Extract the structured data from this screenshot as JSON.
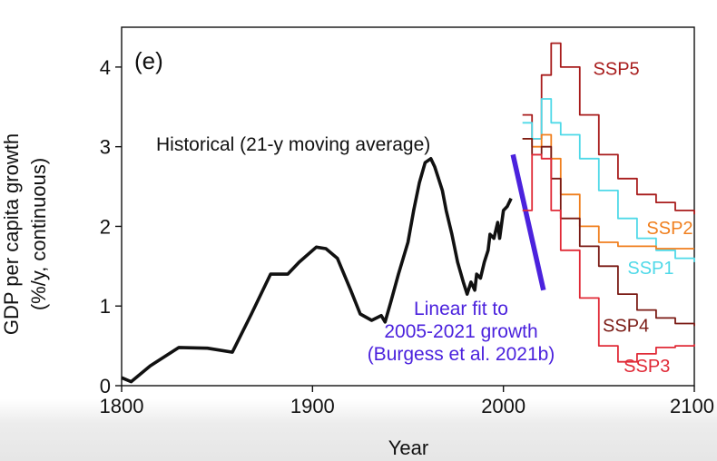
{
  "chart_data": {
    "type": "line",
    "panel_label": "(e)",
    "xlabel": "Year",
    "ylabel_line1": "GDP per capita growth",
    "ylabel_line2": "(%/y, continuous)",
    "xlim": [
      1800,
      2100
    ],
    "ylim": [
      0,
      4.5
    ],
    "x_ticks": [
      1800,
      1900,
      2000,
      2100
    ],
    "y_ticks": [
      0,
      1,
      2,
      3,
      4
    ],
    "grid": false,
    "annotations": {
      "historical": "Historical (21-y moving average)",
      "fit_line1": "Linear fit to",
      "fit_line2": "2005-2021 growth",
      "fit_line3": "(Burgess et al. 2021b)"
    },
    "colors": {
      "historical": "#111111",
      "fit": "#4b22dd",
      "fit_text": "#4b22dd",
      "SSP1": "#4fd9e8",
      "SSP2": "#f07f1e",
      "SSP3": "#e02a37",
      "SSP4": "#7a1a14",
      "SSP5": "#a81c1c"
    },
    "series": [
      {
        "name": "Historical",
        "style": "line",
        "x": [
          1800,
          1805,
          1815,
          1830,
          1845,
          1858,
          1868,
          1878,
          1887,
          1893,
          1902,
          1907,
          1913,
          1920,
          1925,
          1931,
          1936,
          1938,
          1941,
          1945,
          1950,
          1953,
          1956,
          1959,
          1962,
          1964,
          1966,
          1968,
          1970,
          1973,
          1976,
          1979,
          1981,
          1983,
          1985,
          1986,
          1988,
          1990,
          1992,
          1993,
          1995,
          1997,
          1998,
          2000,
          2002,
          2004
        ],
        "values": [
          0.1,
          0.05,
          0.25,
          0.48,
          0.47,
          0.42,
          0.9,
          1.4,
          1.4,
          1.55,
          1.74,
          1.72,
          1.6,
          1.2,
          0.9,
          0.82,
          0.88,
          0.8,
          1.05,
          1.4,
          1.8,
          2.2,
          2.55,
          2.8,
          2.85,
          2.75,
          2.6,
          2.45,
          2.2,
          1.9,
          1.55,
          1.3,
          1.15,
          1.3,
          1.2,
          1.4,
          1.35,
          1.55,
          1.7,
          1.9,
          1.85,
          2.05,
          1.85,
          2.2,
          2.25,
          2.35
        ]
      },
      {
        "name": "Linear fit",
        "style": "line",
        "x": [
          2005,
          2021
        ],
        "values": [
          2.9,
          1.2
        ]
      },
      {
        "name": "SSP5",
        "style": "step",
        "x": [
          2010,
          2015,
          2020,
          2025,
          2030,
          2040,
          2050,
          2060,
          2070,
          2080,
          2090,
          2100
        ],
        "values": [
          3.4,
          3.1,
          3.9,
          4.3,
          4.0,
          3.4,
          2.9,
          2.6,
          2.4,
          2.3,
          2.2,
          2.15
        ]
      },
      {
        "name": "SSP1",
        "style": "step",
        "x": [
          2010,
          2015,
          2020,
          2025,
          2030,
          2040,
          2050,
          2060,
          2070,
          2080,
          2090,
          2100
        ],
        "values": [
          3.3,
          3.1,
          3.6,
          3.3,
          3.15,
          2.85,
          2.45,
          2.1,
          1.85,
          1.7,
          1.6,
          1.55
        ]
      },
      {
        "name": "SSP2",
        "style": "step",
        "x": [
          2010,
          2015,
          2020,
          2025,
          2030,
          2040,
          2050,
          2060,
          2070,
          2080,
          2090,
          2100
        ],
        "values": [
          3.1,
          3.0,
          3.15,
          2.85,
          2.4,
          2.0,
          1.8,
          1.75,
          1.75,
          1.72,
          1.72,
          1.72
        ]
      },
      {
        "name": "SSP4",
        "style": "step",
        "x": [
          2010,
          2015,
          2020,
          2025,
          2030,
          2040,
          2050,
          2060,
          2070,
          2080,
          2090,
          2100
        ],
        "values": [
          3.1,
          2.9,
          3.0,
          2.6,
          2.1,
          1.75,
          1.5,
          1.15,
          0.95,
          0.85,
          0.78,
          0.75
        ]
      },
      {
        "name": "SSP3",
        "style": "step",
        "x": [
          2010,
          2015,
          2020,
          2025,
          2030,
          2040,
          2050,
          2060,
          2070,
          2080,
          2090,
          2100
        ],
        "values": [
          2.2,
          2.9,
          2.85,
          2.2,
          1.7,
          1.1,
          0.5,
          0.3,
          0.4,
          0.48,
          0.5,
          0.52
        ]
      }
    ],
    "series_labels": [
      {
        "name": "SSP5",
        "text": "SSP5",
        "x": 2047,
        "y": 3.9
      },
      {
        "name": "SSP2",
        "text": "SSP2",
        "x": 2075,
        "y": 1.9
      },
      {
        "name": "SSP1",
        "text": "SSP1",
        "x": 2065,
        "y": 1.4
      },
      {
        "name": "SSP4",
        "text": "SSP4",
        "x": 2052,
        "y": 0.68
      },
      {
        "name": "SSP3",
        "text": "SSP3",
        "x": 2063,
        "y": 0.17
      }
    ]
  }
}
